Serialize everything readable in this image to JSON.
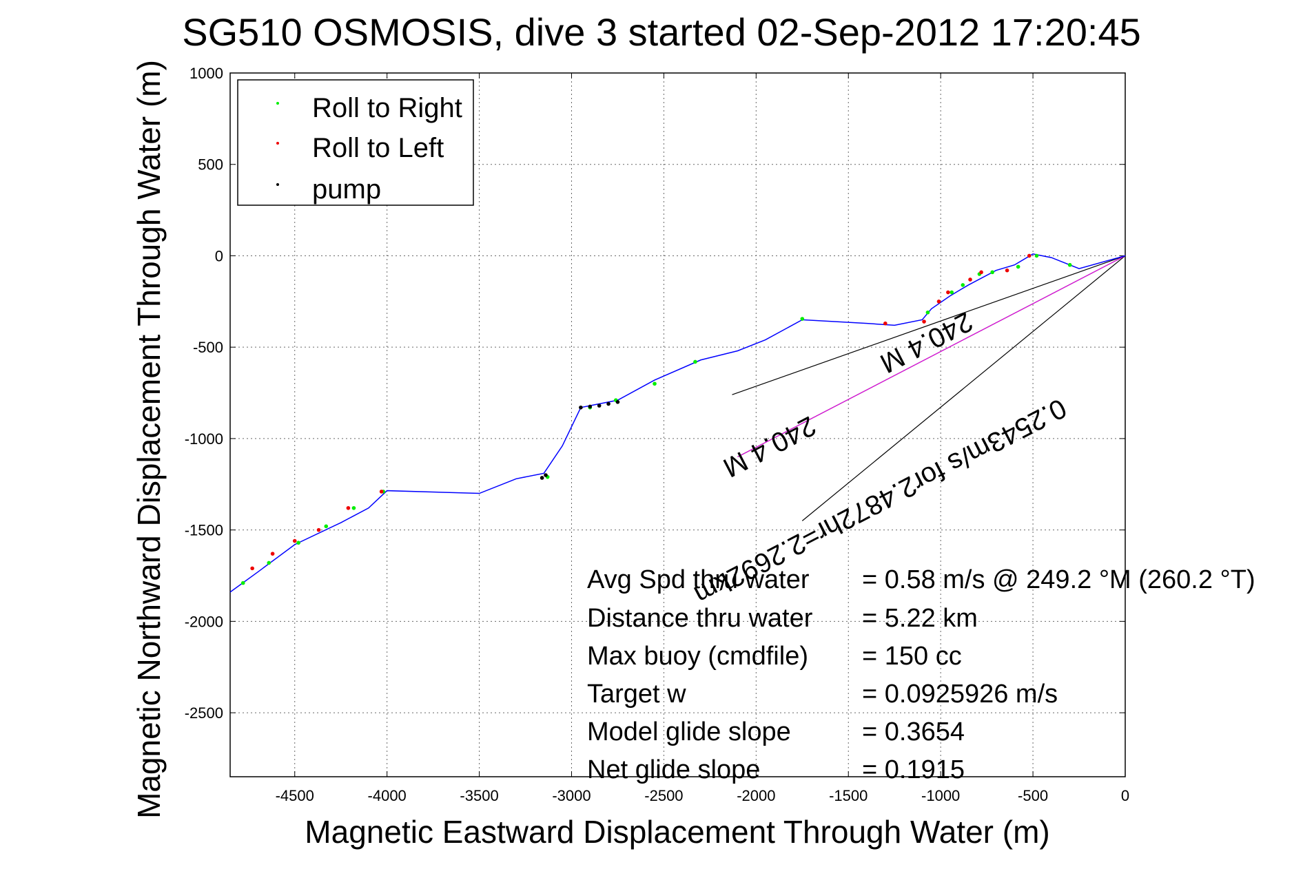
{
  "chart_data": {
    "type": "line",
    "title": "SG510 OSMOSIS, dive 3 started 02-Sep-2012 17:20:45",
    "xlabel": "Magnetic Eastward Displacement Through Water (m)",
    "ylabel": "Magnetic Northward Displacement Through Water (m)",
    "xlim": [
      -4850,
      0
    ],
    "ylim": [
      -2850,
      1000
    ],
    "xticks": [
      -4500,
      -4000,
      -3500,
      -3000,
      -2500,
      -2000,
      -1500,
      -1000,
      -500,
      0
    ],
    "yticks": [
      1000,
      500,
      0,
      -500,
      -1000,
      -1500,
      -2000,
      -2500
    ],
    "grid": true,
    "legend_position": "top-left",
    "legend": [
      {
        "label": "Roll to Right",
        "color": "#00ee00"
      },
      {
        "label": "Roll to Left",
        "color": "#ee0000"
      },
      {
        "label": "pump",
        "color": "#000000"
      }
    ],
    "track": {
      "name": "",
      "color": "#0000ff",
      "x": [
        0,
        -250,
        -400,
        -500,
        -600,
        -700,
        -850,
        -950,
        -1050,
        -1100,
        -1250,
        -1400,
        -1750,
        -1950,
        -2100,
        -2300,
        -2550,
        -2750,
        -2950,
        -3050,
        -3150,
        -3300,
        -3500,
        -4000,
        -4100,
        -4250,
        -4500,
        -4700,
        -4850
      ],
      "y": [
        0,
        -70,
        -10,
        10,
        -50,
        -80,
        -160,
        -220,
        -290,
        -350,
        -380,
        -370,
        -350,
        -460,
        -520,
        -570,
        -680,
        -790,
        -830,
        -1040,
        -1190,
        -1220,
        -1300,
        -1285,
        -1380,
        -1460,
        -1580,
        -1730,
        -1840
      ]
    },
    "roll_right": {
      "x": [
        -300,
        -480,
        -580,
        -720,
        -790,
        -880,
        -940,
        -1070,
        -1750,
        -2330,
        -2550,
        -2760,
        -2900,
        -3130,
        -4020,
        -4180,
        -4330,
        -4480,
        -4640,
        -4780
      ],
      "y": [
        -50,
        0,
        -60,
        -90,
        -100,
        -160,
        -200,
        -310,
        -345,
        -580,
        -700,
        -790,
        -830,
        -1210,
        -1290,
        -1380,
        -1480,
        -1570,
        -1680,
        -1790
      ]
    },
    "roll_left": {
      "x": [
        -520,
        -640,
        -780,
        -840,
        -960,
        -1010,
        -1090,
        -1300,
        -4030,
        -4210,
        -4370,
        -4500,
        -4620,
        -4730
      ],
      "y": [
        0,
        -80,
        -90,
        -130,
        -200,
        -250,
        -360,
        -370,
        -1290,
        -1380,
        -1500,
        -1560,
        -1630,
        -1710
      ]
    },
    "pump": {
      "x": [
        -2950,
        -2900,
        -2850,
        -2800,
        -2750,
        -3140,
        -3160
      ],
      "y": [
        -830,
        -825,
        -820,
        -810,
        -800,
        -1200,
        -1215
      ]
    },
    "cone_lines": [
      {
        "x": [
          0,
          -2130
        ],
        "y": [
          0,
          -760
        ]
      },
      {
        "x": [
          0,
          -1750
        ],
        "y": [
          0,
          -1450
        ]
      },
      {
        "x": [
          0,
          -2100
        ],
        "y": [
          0,
          -1100
        ]
      }
    ],
    "annotations": [
      {
        "text": "0.2543m/s for2.4872hr=2.2692km",
        "x": -1350,
        "y": -1300
      },
      {
        "text": "240.4 M",
        "x": -1100,
        "y": -430
      },
      {
        "text": "240.4 M",
        "x": -1950,
        "y": -1000
      }
    ],
    "stats": [
      {
        "label": "Avg Spd thru water",
        "value": "=  0.58 m/s @ 249.2 °M (260.2 °T)"
      },
      {
        "label": "Distance thru water",
        "value": "=  5.22 km"
      },
      {
        "label": "Max buoy (cmdfile)",
        "value": "= 150 cc"
      },
      {
        "label": "Target w",
        "value": "= 0.0925926 m/s"
      },
      {
        "label": "Model glide slope",
        "value": "= 0.3654"
      },
      {
        "label": "Net glide slope",
        "value": "= 0.1915"
      }
    ]
  }
}
